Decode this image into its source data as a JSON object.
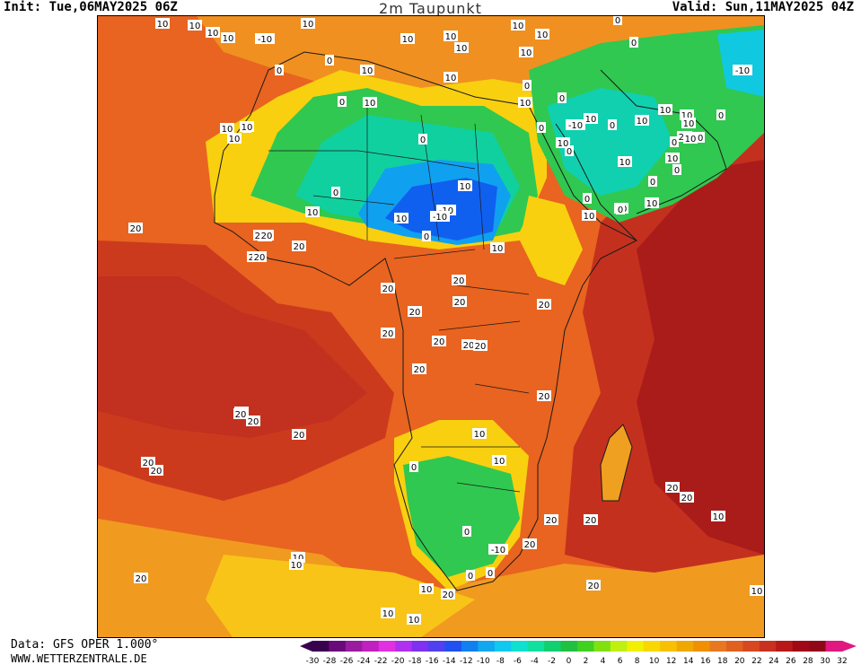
{
  "header": {
    "init": "Init: Tue,06MAY2025 06Z",
    "title": "2m Taupunkt",
    "valid": "Valid: Sun,11MAY2025 04Z"
  },
  "footer": {
    "source": "Data: GFS OPER 1.000°",
    "url": "WWW.WETTERZENTRALE.DE"
  },
  "legend": {
    "ticks": [
      "-30",
      "-28",
      "-26",
      "-24",
      "-22",
      "-20",
      "-18",
      "-16",
      "-14",
      "-12",
      "-10",
      "-8",
      "-6",
      "-4",
      "-2",
      "0",
      "2",
      "4",
      "6",
      "8",
      "10",
      "12",
      "14",
      "16",
      "18",
      "20",
      "22",
      "24",
      "26",
      "28",
      "30",
      "32"
    ],
    "colors": [
      "#3a0050",
      "#6a0a7a",
      "#9a1aa0",
      "#c020c0",
      "#e030e0",
      "#b030f0",
      "#8030f0",
      "#5040f0",
      "#2050f0",
      "#1080f0",
      "#10a8f0",
      "#10c8f0",
      "#10e0d0",
      "#10e0a0",
      "#10d070",
      "#20c040",
      "#40d020",
      "#80e010",
      "#c0f010",
      "#f0f000",
      "#f8d800",
      "#f8c000",
      "#f0a800",
      "#f09000",
      "#e87820",
      "#e06020",
      "#d84820",
      "#c83020",
      "#b81818",
      "#a00818",
      "#900818",
      "#e01880"
    ]
  },
  "map": {
    "contour_labels": [
      "10",
      "10",
      "10",
      "10",
      "-10",
      "10",
      "10",
      "10",
      "10",
      "10",
      "10",
      "10",
      "0",
      "0",
      "-10",
      "0",
      "0",
      "10",
      "10",
      "10",
      "0",
      "10",
      "0",
      "0",
      "0",
      "10",
      "10",
      "10",
      "10",
      "10",
      "0",
      "10",
      "0",
      "10",
      "-10",
      "10",
      "10",
      "0",
      "10",
      "0",
      "0",
      "0",
      "10",
      "20",
      "20",
      "10",
      "0",
      "0",
      "10",
      "-10",
      "10",
      "-10",
      "0",
      "10",
      "10",
      "10",
      "0",
      "0",
      "0",
      "10",
      "0",
      "10",
      "20",
      "20",
      "20",
      "20",
      "20",
      "20",
      "20",
      "20",
      "20",
      "20",
      "20",
      "20",
      "20",
      "20",
      "20",
      "20",
      "20",
      "20",
      "20",
      "20",
      "20",
      "10",
      "0",
      "10",
      "0",
      "-10",
      "20",
      "20",
      "20",
      "0",
      "0",
      "20",
      "10",
      "10",
      "20",
      "20",
      "10",
      "10",
      "10",
      "20",
      "20",
      "20",
      "20",
      "20",
      "10",
      "10"
    ]
  }
}
